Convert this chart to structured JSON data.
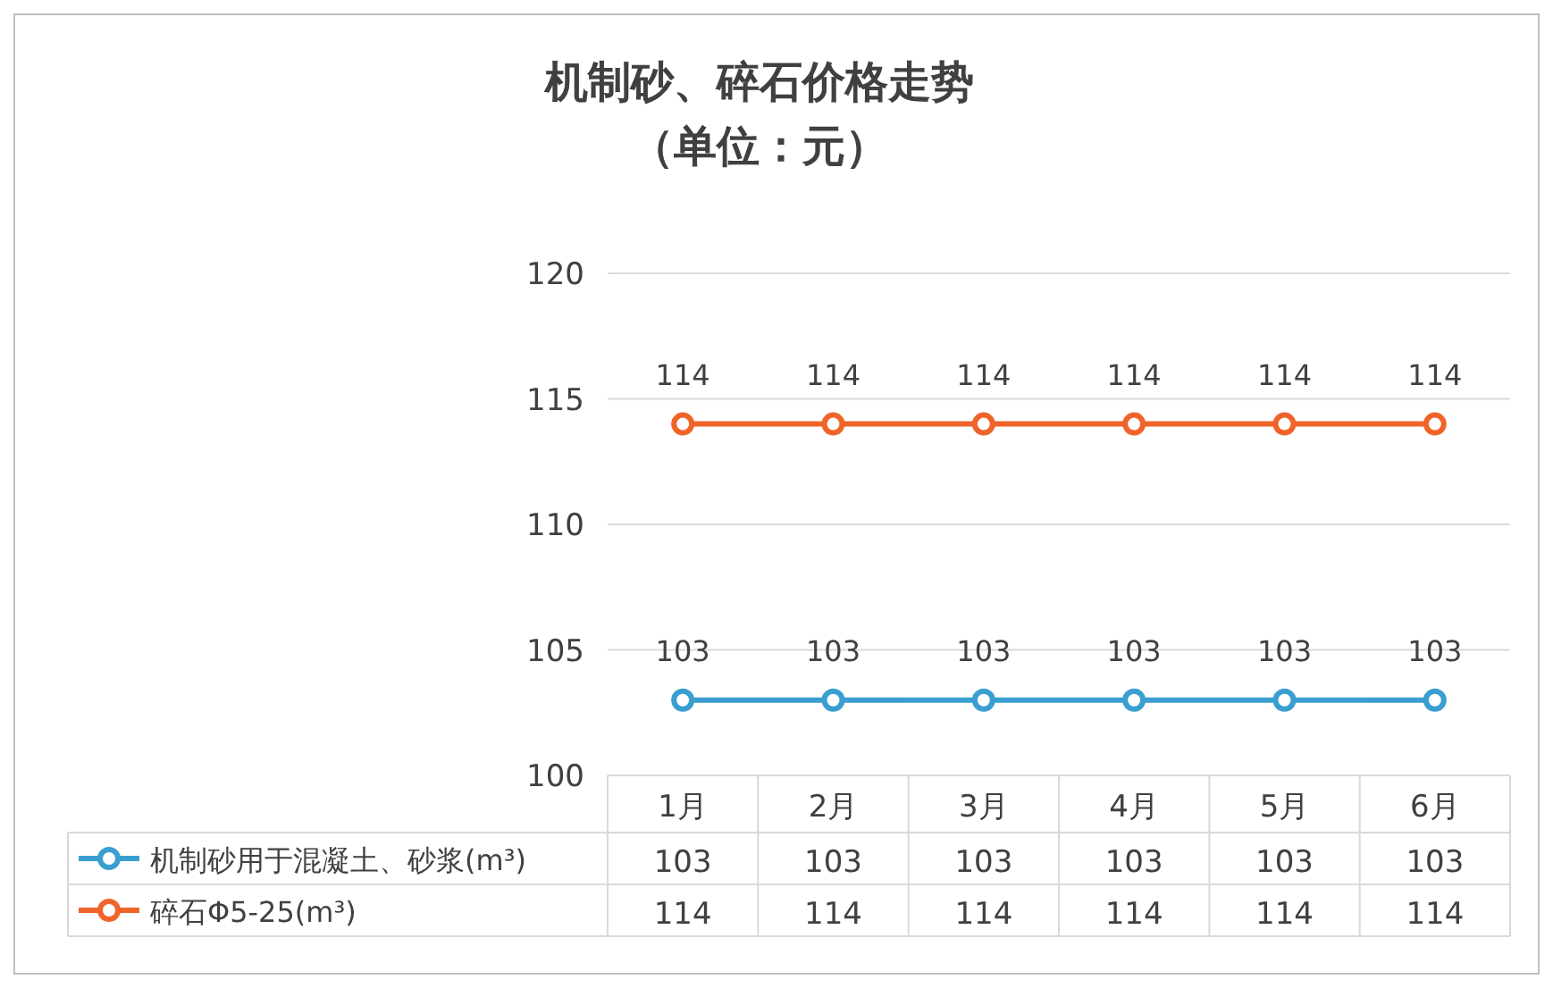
{
  "chart_data": {
    "type": "line",
    "title": "机制砂、碎石价格走势",
    "subtitle": "（单位：元）",
    "categories": [
      "1月",
      "2月",
      "3月",
      "4月",
      "5月",
      "6月"
    ],
    "series": [
      {
        "name": "机制砂用于混凝土、砂浆(m³)",
        "color": "#3a9fd0",
        "values": [
          103,
          103,
          103,
          103,
          103,
          103
        ]
      },
      {
        "name": "碎石Φ5-25(m³)",
        "color": "#f0642a",
        "values": [
          114,
          114,
          114,
          114,
          114,
          114
        ]
      }
    ],
    "annotations": [
      "103",
      "103",
      "103",
      "103",
      "103",
      "103",
      "114",
      "114",
      "114",
      "114",
      "114",
      "114"
    ],
    "ylim": [
      100,
      120
    ],
    "yticks": [
      100,
      105,
      110,
      115,
      120
    ],
    "grid": "y",
    "marker": "circle",
    "line_style": "solid",
    "data_labels": true,
    "legend": "bottom left"
  }
}
